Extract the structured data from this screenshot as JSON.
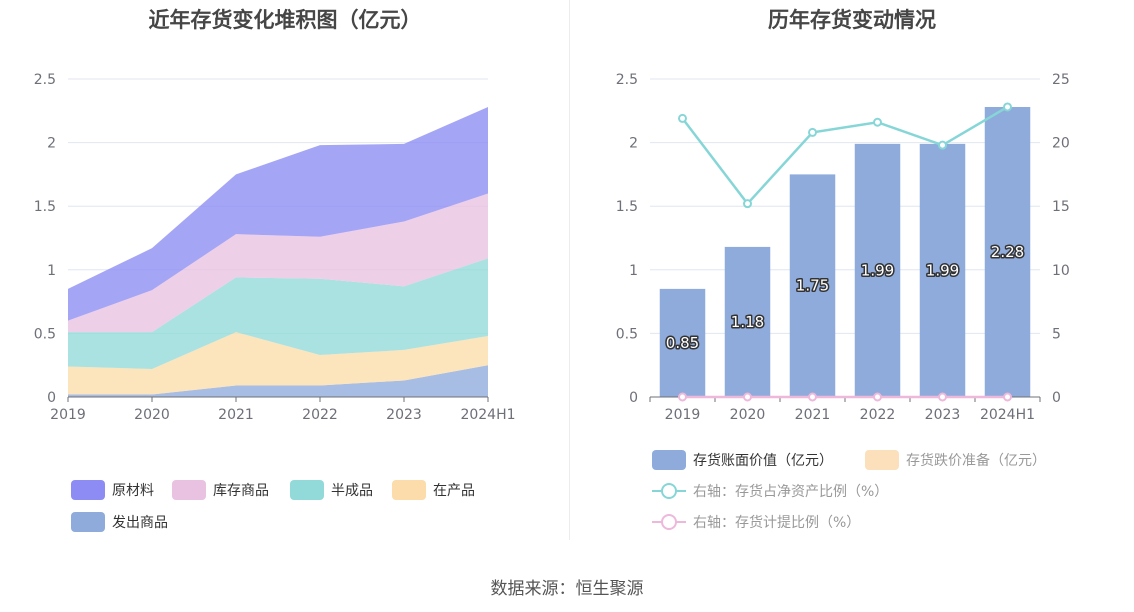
{
  "source_label": "数据来源：恒生聚源",
  "colors": {
    "grid": "#e0e6f1",
    "axis_label": "#6e7079",
    "bar": "#8eabdb",
    "impairment": "#fbe0bb",
    "line_ratio": "#87d6d7",
    "line_provision": "#eeb8da"
  },
  "chart_data": [
    {
      "type": "area",
      "stacked": true,
      "title": "近年存货变化堆积图（亿元）",
      "categories": [
        "2019",
        "2020",
        "2021",
        "2022",
        "2023",
        "2024H1"
      ],
      "y_ticks": [
        "0",
        "0.5",
        "1",
        "1.5",
        "2",
        "2.5"
      ],
      "ylim": [
        0,
        2.5
      ],
      "legend_position": "bottom",
      "grid": true,
      "series": [
        {
          "name": "发出商品",
          "color": "#8eabdb",
          "values": [
            0.02,
            0.02,
            0.09,
            0.09,
            0.13,
            0.25
          ]
        },
        {
          "name": "在产品",
          "color": "#fbdcaa",
          "values": [
            0.22,
            0.2,
            0.42,
            0.24,
            0.24,
            0.23
          ]
        },
        {
          "name": "半成品",
          "color": "#91dad9",
          "values": [
            0.27,
            0.29,
            0.43,
            0.6,
            0.5,
            0.61
          ]
        },
        {
          "name": "库存商品",
          "color": "#e9c1e1",
          "values": [
            0.09,
            0.33,
            0.34,
            0.33,
            0.51,
            0.51
          ]
        },
        {
          "name": "原材料",
          "color": "#8c8cf4",
          "values": [
            0.25,
            0.33,
            0.47,
            0.72,
            0.61,
            0.68
          ]
        }
      ],
      "legend_order": [
        "原材料",
        "库存商品",
        "半成品",
        "在产品",
        "发出商品"
      ]
    },
    {
      "type": "bar",
      "title": "历年存货变动情况",
      "categories": [
        "2019",
        "2020",
        "2021",
        "2022",
        "2023",
        "2024H1"
      ],
      "y_ticks": [
        "0",
        "0.5",
        "1",
        "1.5",
        "2",
        "2.5"
      ],
      "ylim": [
        0,
        2.5
      ],
      "y2_ticks": [
        "0",
        "5",
        "10",
        "15",
        "20",
        "25"
      ],
      "y2lim": [
        0,
        25
      ],
      "legend_position": "bottom",
      "grid": true,
      "series": [
        {
          "name": "存货账面价值（亿元）",
          "type": "bar",
          "axis": "left",
          "values": [
            0.85,
            1.18,
            1.75,
            1.99,
            1.99,
            2.28
          ],
          "labels": [
            "0.85",
            "1.18",
            "1.75",
            "1.99",
            "1.99",
            "2.28"
          ]
        },
        {
          "name": "存货跌价准备（亿元）",
          "type": "bar",
          "axis": "left",
          "values": [
            0,
            0,
            0,
            0,
            0,
            0
          ]
        },
        {
          "name": "右轴：存货占净资产比例（%）",
          "type": "line",
          "axis": "right",
          "values": [
            21.9,
            15.2,
            20.8,
            21.6,
            19.8,
            22.8
          ]
        },
        {
          "name": "右轴：存货计提比例（%）",
          "type": "line",
          "axis": "right",
          "values": [
            0,
            0,
            0,
            0,
            0,
            0
          ]
        }
      ]
    }
  ]
}
